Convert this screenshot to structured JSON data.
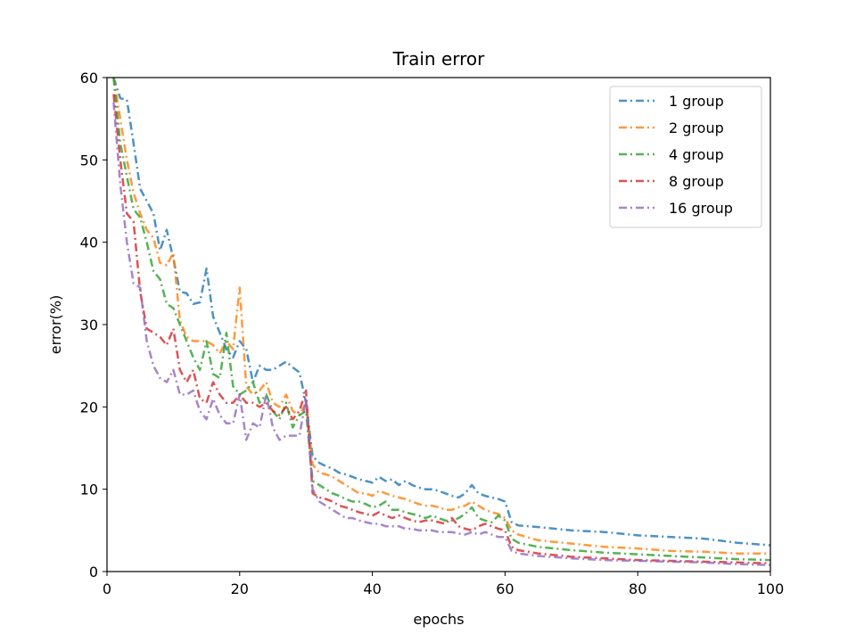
{
  "chart_data": {
    "type": "line",
    "title": "Train error",
    "xlabel": "epochs",
    "ylabel": "error(%)",
    "xlim": [
      0,
      100
    ],
    "ylim": [
      0,
      60
    ],
    "xticks": [
      0,
      20,
      40,
      60,
      80,
      100
    ],
    "yticks": [
      0,
      10,
      20,
      30,
      40,
      50,
      60
    ],
    "xtick_labels": [
      "0",
      "20",
      "40",
      "60",
      "80",
      "100"
    ],
    "ytick_labels": [
      "0",
      "10",
      "20",
      "30",
      "40",
      "50",
      "60"
    ],
    "grid": false,
    "legend_position": "top-right",
    "line_style": "dash-dot",
    "series": [
      {
        "name": "1 group",
        "color": "#1f77b4",
        "x": [
          1,
          2,
          3,
          4,
          5,
          6,
          7,
          8,
          9,
          10,
          11,
          12,
          13,
          14,
          15,
          16,
          17,
          18,
          19,
          20,
          21,
          22,
          23,
          24,
          25,
          26,
          27,
          28,
          29,
          30,
          31,
          32,
          33,
          34,
          35,
          36,
          37,
          38,
          39,
          40,
          41,
          42,
          43,
          44,
          45,
          46,
          47,
          48,
          49,
          50,
          51,
          52,
          53,
          54,
          55,
          56,
          57,
          58,
          59,
          60,
          61,
          62,
          65,
          70,
          75,
          80,
          85,
          90,
          95,
          100
        ],
        "y": [
          60,
          57.5,
          57.3,
          52,
          46.5,
          45,
          43.5,
          39,
          41.5,
          38,
          34,
          33.8,
          32.5,
          32.7,
          36.8,
          31,
          29,
          27,
          26,
          28,
          27,
          23,
          25,
          24.5,
          24.5,
          25,
          25.5,
          24.8,
          24.2,
          20.5,
          14,
          13.2,
          12.8,
          12.5,
          12,
          11.8,
          11.5,
          11.2,
          11,
          10.8,
          11.5,
          11,
          11.2,
          10.5,
          11,
          10.5,
          10.2,
          10,
          10,
          9.8,
          9.5,
          9.2,
          9,
          9.5,
          10.5,
          9.5,
          9.2,
          9,
          8.8,
          8.5,
          6,
          5.6,
          5.4,
          5,
          4.8,
          4.4,
          4.2,
          4,
          3.5,
          3.2
        ]
      },
      {
        "name": "2 group",
        "color": "#ff7f0e",
        "x": [
          1,
          2,
          3,
          4,
          5,
          6,
          7,
          8,
          9,
          10,
          11,
          12,
          13,
          14,
          15,
          16,
          17,
          18,
          19,
          20,
          21,
          22,
          23,
          24,
          25,
          26,
          27,
          28,
          29,
          30,
          31,
          32,
          33,
          34,
          35,
          36,
          37,
          38,
          39,
          40,
          41,
          42,
          43,
          44,
          45,
          46,
          47,
          48,
          49,
          50,
          51,
          52,
          53,
          54,
          55,
          56,
          57,
          58,
          59,
          60,
          61,
          62,
          65,
          70,
          75,
          80,
          85,
          90,
          95,
          100
        ],
        "y": [
          60,
          55,
          50,
          46,
          43.5,
          41.5,
          40.5,
          37.5,
          37.2,
          38.7,
          30.5,
          28.5,
          28,
          28,
          28,
          27.5,
          26.5,
          28,
          27,
          34.5,
          22.5,
          21.5,
          22,
          23,
          20.5,
          20,
          21.5,
          19.5,
          19,
          20.5,
          13,
          12,
          11.8,
          11.5,
          11,
          10.5,
          10,
          9.5,
          9.5,
          9.2,
          9.8,
          9.5,
          9.2,
          9,
          8.8,
          8.5,
          8.2,
          8,
          8,
          7.8,
          7.5,
          7.5,
          7.8,
          8,
          8.5,
          8,
          7.5,
          7.2,
          7,
          6.5,
          5,
          4.5,
          3.8,
          3.4,
          3,
          2.8,
          2.5,
          2.4,
          2.2,
          2.2
        ]
      },
      {
        "name": "4 group",
        "color": "#2ca02c",
        "x": [
          1,
          2,
          3,
          4,
          5,
          6,
          7,
          8,
          9,
          10,
          11,
          12,
          13,
          14,
          15,
          16,
          17,
          18,
          19,
          20,
          21,
          22,
          23,
          24,
          25,
          26,
          27,
          28,
          29,
          30,
          31,
          32,
          33,
          34,
          35,
          36,
          37,
          38,
          39,
          40,
          41,
          42,
          43,
          44,
          45,
          46,
          47,
          48,
          49,
          50,
          51,
          52,
          53,
          54,
          55,
          56,
          57,
          58,
          59,
          60,
          61,
          62,
          65,
          70,
          75,
          80,
          85,
          90,
          95,
          100
        ],
        "y": [
          60,
          52,
          48,
          44,
          43,
          40,
          36.5,
          35.5,
          32.5,
          32,
          30,
          28,
          26,
          24.5,
          28,
          24,
          23.5,
          29,
          22.5,
          21.5,
          22,
          23,
          20.5,
          21.5,
          19.5,
          18.5,
          20.5,
          17.5,
          19,
          19.5,
          11,
          10.5,
          10,
          9.5,
          9.2,
          8.8,
          8.5,
          8.5,
          8.2,
          7.8,
          8,
          8.5,
          7.5,
          7.5,
          7.2,
          7,
          6.8,
          6.5,
          6.8,
          6.5,
          6.2,
          6.2,
          6.5,
          7,
          7.8,
          6.5,
          6.2,
          6,
          6.8,
          6.2,
          4,
          3.5,
          3,
          2.6,
          2.3,
          2.1,
          1.9,
          1.7,
          1.5,
          1.4
        ]
      },
      {
        "name": "8 group",
        "color": "#d62728",
        "x": [
          1,
          2,
          3,
          4,
          5,
          6,
          7,
          8,
          9,
          10,
          11,
          12,
          13,
          14,
          15,
          16,
          17,
          18,
          19,
          20,
          21,
          22,
          23,
          24,
          25,
          26,
          27,
          28,
          29,
          30,
          31,
          32,
          33,
          34,
          35,
          36,
          37,
          38,
          39,
          40,
          41,
          42,
          43,
          44,
          45,
          46,
          47,
          48,
          49,
          50,
          51,
          52,
          53,
          54,
          55,
          56,
          57,
          58,
          59,
          60,
          61,
          62,
          65,
          70,
          75,
          80,
          85,
          90,
          95,
          100
        ],
        "y": [
          58,
          50,
          43.5,
          42.5,
          34,
          29.5,
          29,
          28.5,
          27.5,
          29.5,
          24.5,
          23,
          24.5,
          21,
          20.5,
          23,
          21.5,
          20.5,
          20.5,
          21.5,
          20.5,
          20.5,
          20,
          20.5,
          19.5,
          19,
          20,
          18.5,
          19.5,
          22,
          9.5,
          9,
          8.8,
          8.5,
          8,
          7.8,
          7.5,
          7.2,
          7,
          6.8,
          7.2,
          6.8,
          6.5,
          6.8,
          6.5,
          6.2,
          6,
          6.2,
          6.2,
          6,
          5.8,
          6.5,
          5.5,
          5.2,
          5,
          5.5,
          5.8,
          5.5,
          5.2,
          5,
          3,
          2.6,
          2.2,
          1.8,
          1.6,
          1.4,
          1.3,
          1.2,
          1.1,
          1.0
        ]
      },
      {
        "name": "16 group",
        "color": "#9467bd",
        "x": [
          1,
          2,
          3,
          4,
          5,
          6,
          7,
          8,
          9,
          10,
          11,
          12,
          13,
          14,
          15,
          16,
          17,
          18,
          19,
          20,
          21,
          22,
          23,
          24,
          25,
          26,
          27,
          28,
          29,
          30,
          31,
          32,
          33,
          34,
          35,
          36,
          37,
          38,
          39,
          40,
          41,
          42,
          43,
          44,
          45,
          46,
          47,
          48,
          49,
          50,
          51,
          52,
          53,
          54,
          55,
          56,
          57,
          58,
          59,
          60,
          61,
          62,
          65,
          70,
          75,
          80,
          85,
          90,
          95,
          100
        ],
        "y": [
          57,
          47,
          40,
          35,
          34.5,
          28,
          25,
          23.5,
          23,
          24.5,
          21.5,
          21.5,
          22,
          19.5,
          18.5,
          21,
          19,
          18,
          18,
          21.5,
          16,
          18,
          17.5,
          21.5,
          17.5,
          16,
          16.5,
          16.5,
          16.5,
          21,
          10,
          8.5,
          8,
          7.5,
          7,
          6.5,
          6.5,
          6.2,
          6,
          5.8,
          5.8,
          5.5,
          5.5,
          5.5,
          5.2,
          5.2,
          5,
          5,
          5,
          4.8,
          4.8,
          4.8,
          4.6,
          4.5,
          4.8,
          4.5,
          4.8,
          4.5,
          4.2,
          4.2,
          2.5,
          2.2,
          1.9,
          1.6,
          1.4,
          1.3,
          1.2,
          1.1,
          0.9,
          0.8
        ]
      }
    ]
  }
}
